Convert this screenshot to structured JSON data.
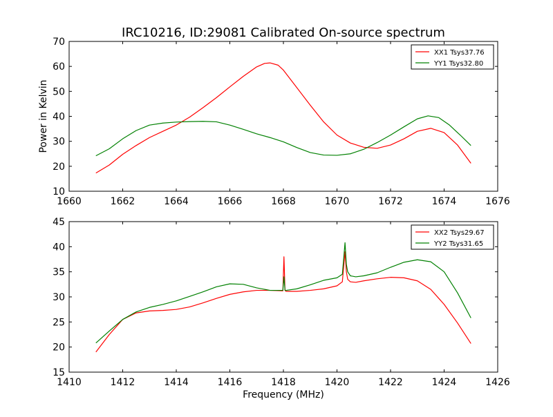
{
  "figure": {
    "title": "IRC10216, ID:29081 Calibrated On-source spectrum"
  },
  "colors": {
    "xx": "#ff0000",
    "yy": "#008000"
  },
  "chart_data": [
    {
      "type": "line",
      "title": "IRC10216, ID:29081 Calibrated On-source spectrum",
      "xlabel": "",
      "ylabel": "Power in Kelvin",
      "xlim": [
        1660,
        1676
      ],
      "ylim": [
        10,
        70
      ],
      "xticks": [
        1660,
        1662,
        1664,
        1666,
        1668,
        1670,
        1672,
        1674,
        1676
      ],
      "yticks": [
        10,
        20,
        30,
        40,
        50,
        60,
        70
      ],
      "grid": false,
      "legend": "top-right",
      "series": [
        {
          "name": "XX1 Tsys37.76",
          "color": "#ff0000",
          "x": [
            1661.0,
            1661.5,
            1662.0,
            1662.5,
            1663.0,
            1663.5,
            1664.0,
            1664.5,
            1665.0,
            1665.5,
            1666.0,
            1666.5,
            1667.0,
            1667.3,
            1667.5,
            1667.8,
            1668.0,
            1668.5,
            1669.0,
            1669.5,
            1670.0,
            1670.5,
            1671.0,
            1671.5,
            1672.0,
            1672.5,
            1673.0,
            1673.5,
            1674.0,
            1674.5,
            1675.0
          ],
          "y": [
            17.3,
            20.5,
            24.8,
            28.3,
            31.5,
            34.0,
            36.5,
            39.7,
            43.5,
            47.5,
            51.8,
            56.0,
            59.8,
            61.2,
            61.4,
            60.5,
            58.5,
            51.5,
            44.5,
            37.8,
            32.5,
            29.3,
            27.6,
            27.2,
            28.5,
            31.0,
            34.0,
            35.2,
            33.5,
            28.5,
            21.2
          ]
        },
        {
          "name": "YY1 Tsys32.80",
          "color": "#008000",
          "x": [
            1661.0,
            1661.5,
            1662.0,
            1662.5,
            1663.0,
            1663.5,
            1664.0,
            1664.5,
            1665.0,
            1665.5,
            1666.0,
            1666.5,
            1667.0,
            1667.5,
            1668.0,
            1668.5,
            1669.0,
            1669.5,
            1670.0,
            1670.5,
            1671.0,
            1671.5,
            1672.0,
            1672.5,
            1673.0,
            1673.4,
            1673.8,
            1674.2,
            1674.6,
            1675.0
          ],
          "y": [
            24.2,
            27.0,
            31.0,
            34.3,
            36.5,
            37.3,
            37.7,
            37.9,
            38.0,
            37.8,
            36.5,
            34.8,
            33.0,
            31.5,
            29.8,
            27.5,
            25.5,
            24.5,
            24.4,
            25.0,
            26.8,
            29.5,
            32.5,
            35.8,
            39.0,
            40.2,
            39.5,
            36.5,
            32.5,
            28.3
          ]
        }
      ]
    },
    {
      "type": "line",
      "xlabel": "Frequency (MHz)",
      "ylabel": "",
      "xlim": [
        1410,
        1426
      ],
      "ylim": [
        15,
        45
      ],
      "xticks": [
        1410,
        1412,
        1414,
        1416,
        1418,
        1420,
        1422,
        1424,
        1426
      ],
      "yticks": [
        15,
        20,
        25,
        30,
        35,
        40,
        45
      ],
      "grid": false,
      "legend": "top-right",
      "series": [
        {
          "name": "XX2 Tsys29.67",
          "color": "#ff0000",
          "x": [
            1411.0,
            1411.5,
            1412.0,
            1412.5,
            1413.0,
            1413.5,
            1414.0,
            1414.5,
            1415.0,
            1415.5,
            1416.0,
            1416.5,
            1417.0,
            1417.5,
            1417.98,
            1418.02,
            1418.06,
            1418.1,
            1418.5,
            1419.0,
            1419.5,
            1420.0,
            1420.2,
            1420.3,
            1420.35,
            1420.4,
            1420.5,
            1420.7,
            1421.0,
            1421.5,
            1422.0,
            1422.5,
            1423.0,
            1423.5,
            1424.0,
            1424.5,
            1425.0
          ],
          "y": [
            19.0,
            22.5,
            25.5,
            26.8,
            27.2,
            27.3,
            27.5,
            28.0,
            28.8,
            29.7,
            30.5,
            31.0,
            31.3,
            31.3,
            31.2,
            38.0,
            31.3,
            31.1,
            31.1,
            31.3,
            31.6,
            32.2,
            33.0,
            39.0,
            35.0,
            33.5,
            33.0,
            32.9,
            33.2,
            33.6,
            33.9,
            33.8,
            33.2,
            31.5,
            28.5,
            24.8,
            20.7
          ]
        },
        {
          "name": "YY2 Tsys31.65",
          "color": "#008000",
          "x": [
            1411.0,
            1411.5,
            1412.0,
            1412.5,
            1413.0,
            1413.5,
            1414.0,
            1414.5,
            1415.0,
            1415.5,
            1416.0,
            1416.5,
            1417.0,
            1417.5,
            1417.98,
            1418.02,
            1418.06,
            1418.1,
            1418.5,
            1419.0,
            1419.5,
            1420.0,
            1420.2,
            1420.3,
            1420.35,
            1420.4,
            1420.5,
            1420.7,
            1421.0,
            1421.5,
            1422.0,
            1422.5,
            1423.0,
            1423.5,
            1424.0,
            1424.5,
            1425.0
          ],
          "y": [
            20.8,
            23.2,
            25.5,
            27.0,
            27.9,
            28.5,
            29.2,
            30.1,
            31.0,
            32.0,
            32.6,
            32.5,
            31.8,
            31.3,
            31.3,
            34.0,
            31.3,
            31.3,
            31.6,
            32.4,
            33.3,
            33.8,
            34.5,
            40.8,
            36.5,
            35.0,
            34.2,
            34.0,
            34.2,
            34.8,
            35.9,
            36.9,
            37.4,
            37.0,
            35.0,
            30.8,
            25.8
          ]
        }
      ]
    }
  ]
}
